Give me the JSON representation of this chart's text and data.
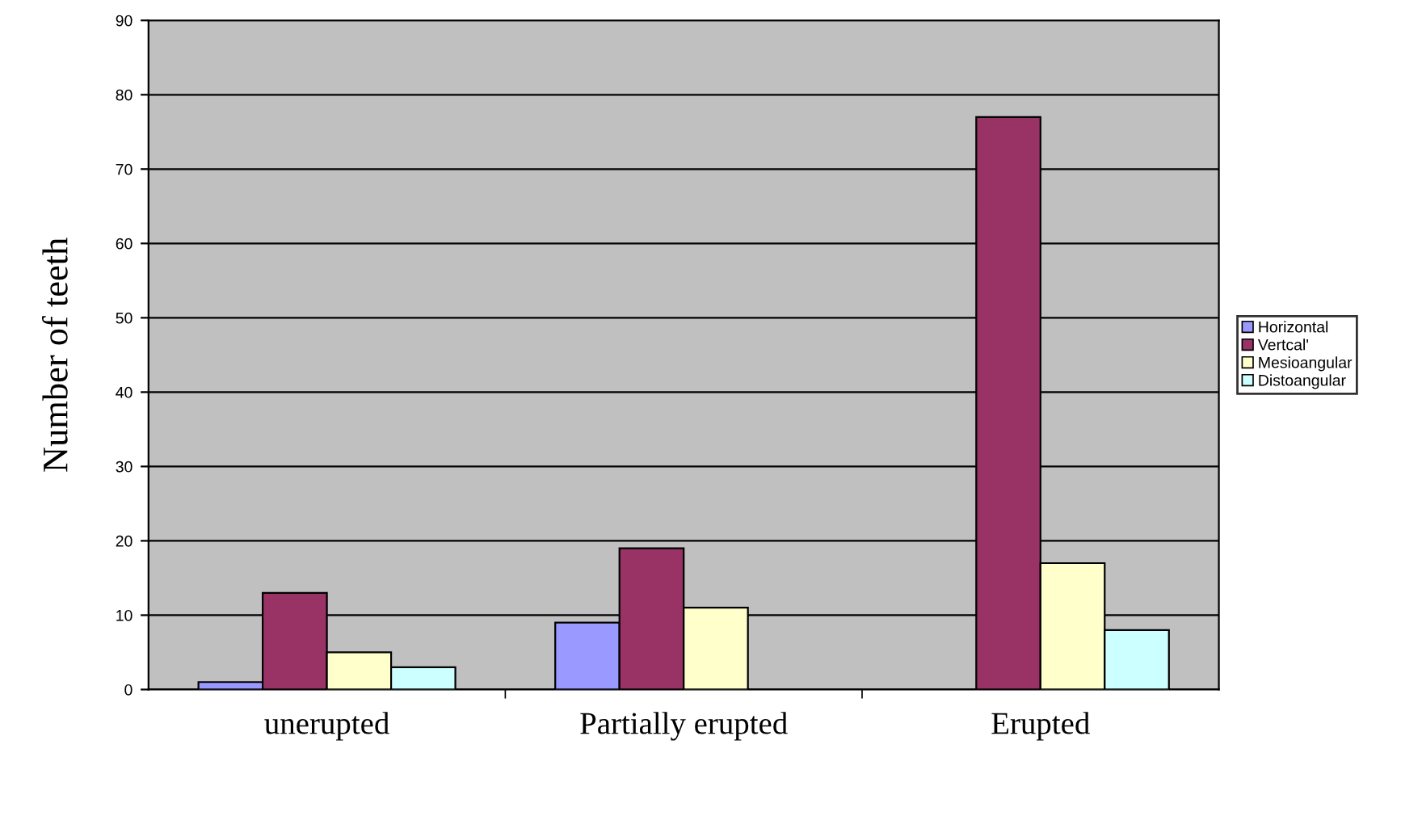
{
  "chart_data": {
    "type": "bar",
    "ylabel": "Number of teeth",
    "categories": [
      "unerupted",
      "Partially erupted",
      "Erupted"
    ],
    "series": [
      {
        "name": "Horizontal",
        "color": "#9999ff",
        "values": [
          1,
          9,
          null
        ]
      },
      {
        "name": "Vertcal'",
        "color": "#993366",
        "values": [
          13,
          19,
          77
        ]
      },
      {
        "name": "Mesioangular",
        "color": "#ffffcc",
        "values": [
          5,
          11,
          17
        ]
      },
      {
        "name": "Distoangular",
        "color": "#ccffff",
        "values": [
          3,
          null,
          8
        ]
      }
    ],
    "ylim": [
      0,
      90
    ],
    "yticks": [
      0,
      10,
      20,
      30,
      40,
      50,
      60,
      70,
      80,
      90
    ],
    "grid": "y",
    "legend": "right"
  }
}
